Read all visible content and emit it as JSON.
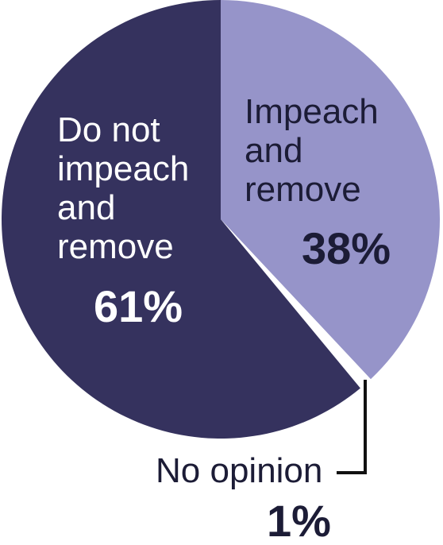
{
  "chart_data": {
    "type": "pie",
    "slices": [
      {
        "label_lines": [
          "Impeach",
          "and",
          "remove"
        ],
        "value": 38,
        "value_label": "38%",
        "color": "#9694c9"
      },
      {
        "label_lines": [
          "No opinion"
        ],
        "value": 1,
        "value_label": "1%",
        "color": "#ffffff"
      },
      {
        "label_lines": [
          "Do not",
          "impeach",
          "and",
          "remove"
        ],
        "value": 61,
        "value_label": "61%",
        "color": "#35325e"
      }
    ],
    "leader_line_color": "#111111"
  }
}
